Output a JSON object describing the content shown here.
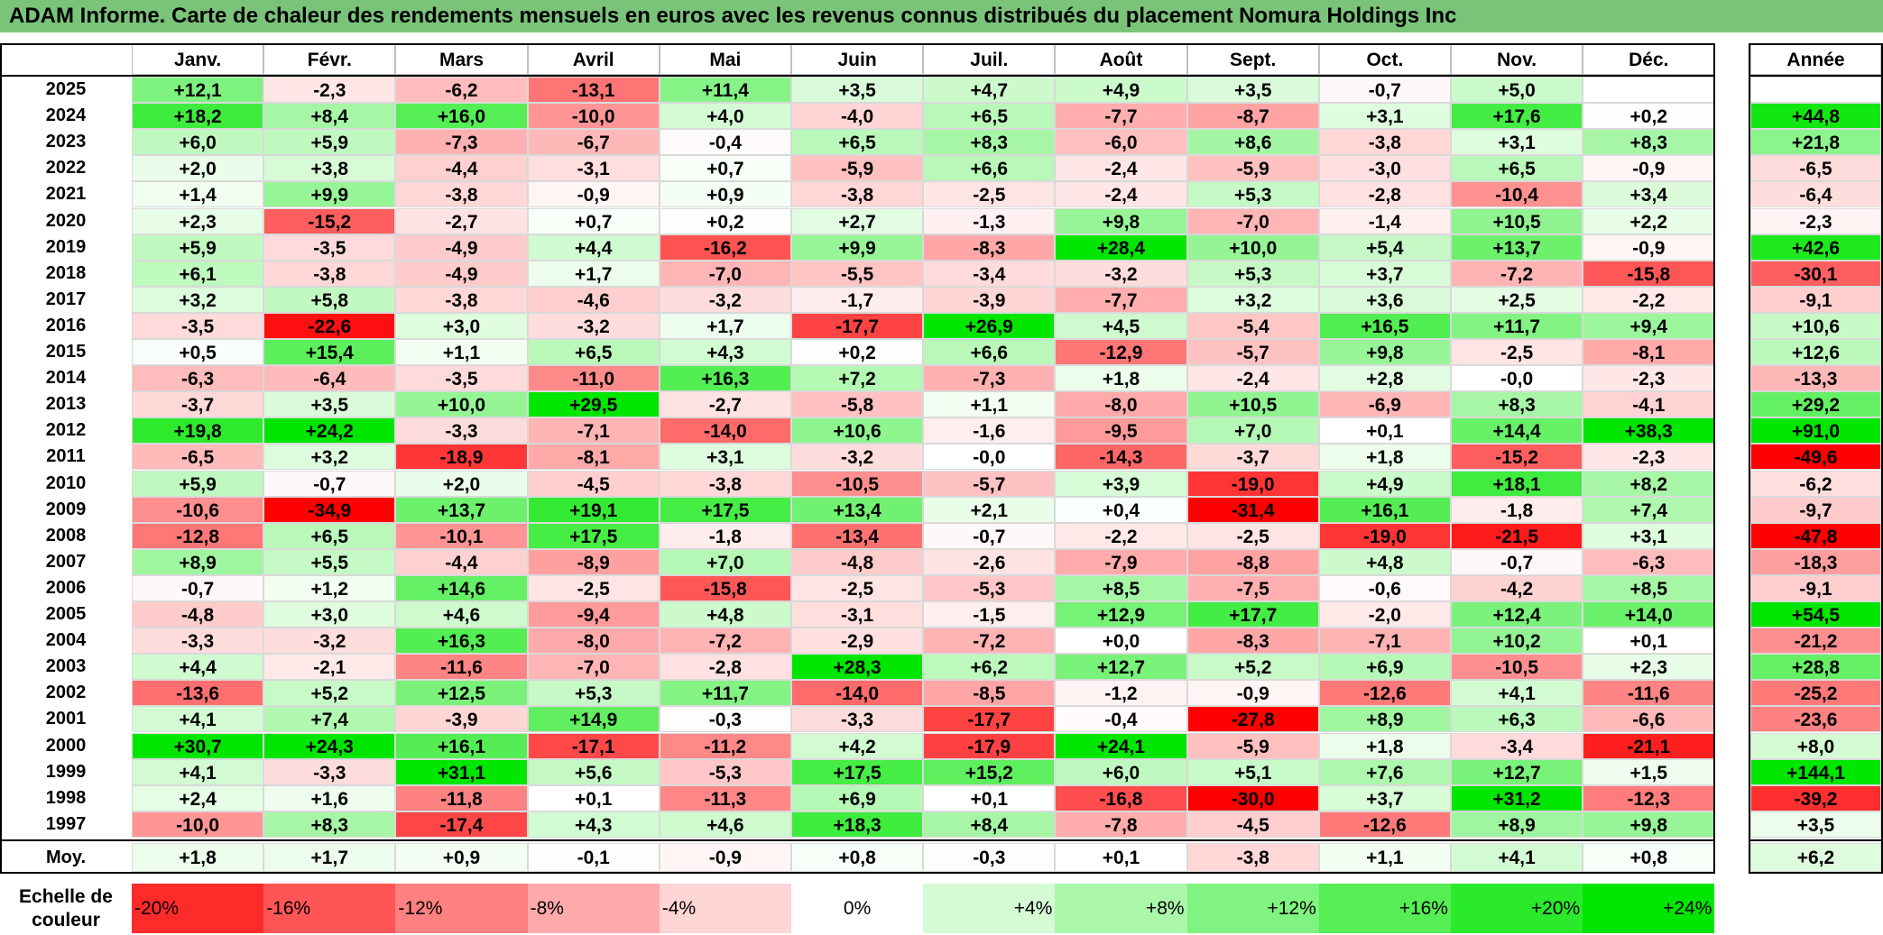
{
  "title": "ADAM Informe. Carte de chaleur des rendements mensuels en euros avec les revenus connus distribués du placement Nomura Holdings Inc",
  "colors": {
    "title_bg": "#7ac47a",
    "max_red": "#ff0000",
    "max_green": "#00e600",
    "neutral": "#ffffff"
  },
  "chart_data": {
    "type": "heatmap",
    "title": "ADAM Informe. Carte de chaleur des rendements mensuels en euros avec les revenus connus distribués du placement Nomura Holdings Inc",
    "months": [
      "Janv.",
      "Févr.",
      "Mars",
      "Avril",
      "Mai",
      "Juin",
      "Juil.",
      "Août",
      "Sept.",
      "Oct.",
      "Nov.",
      "Déc."
    ],
    "annual_label": "Année",
    "rows": [
      {
        "year": "2025",
        "values": [
          "+12,1",
          "-2,3",
          "-6,2",
          "-13,1",
          "+11,4",
          "+3,5",
          "+4,7",
          "+4,9",
          "+3,5",
          "-0,7",
          "+5,0",
          ""
        ],
        "annual": ""
      },
      {
        "year": "2024",
        "values": [
          "+18,2",
          "+8,4",
          "+16,0",
          "-10,0",
          "+4,0",
          "-4,0",
          "+6,5",
          "-7,7",
          "-8,7",
          "+3,1",
          "+17,6",
          "+0,2"
        ],
        "annual": "+44,8"
      },
      {
        "year": "2023",
        "values": [
          "+6,0",
          "+5,9",
          "-7,3",
          "-6,7",
          "-0,4",
          "+6,5",
          "+8,3",
          "-6,0",
          "+8,6",
          "-3,8",
          "+3,1",
          "+8,3"
        ],
        "annual": "+21,8"
      },
      {
        "year": "2022",
        "values": [
          "+2,0",
          "+3,8",
          "-4,4",
          "-3,1",
          "+0,7",
          "-5,9",
          "+6,6",
          "-2,4",
          "-5,9",
          "-3,0",
          "+6,5",
          "-0,9"
        ],
        "annual": "-6,5"
      },
      {
        "year": "2021",
        "values": [
          "+1,4",
          "+9,9",
          "-3,8",
          "-0,9",
          "+0,9",
          "-3,8",
          "-2,5",
          "-2,4",
          "+5,3",
          "-2,8",
          "-10,4",
          "+3,4"
        ],
        "annual": "-6,4"
      },
      {
        "year": "2020",
        "values": [
          "+2,3",
          "-15,2",
          "-2,7",
          "+0,7",
          "+0,2",
          "+2,7",
          "-1,3",
          "+9,8",
          "-7,0",
          "-1,4",
          "+10,5",
          "+2,2"
        ],
        "annual": "-2,3"
      },
      {
        "year": "2019",
        "values": [
          "+5,9",
          "-3,5",
          "-4,9",
          "+4,4",
          "-16,2",
          "+9,9",
          "-8,3",
          "+28,4",
          "+10,0",
          "+5,4",
          "+13,7",
          "-0,9"
        ],
        "annual": "+42,6"
      },
      {
        "year": "2018",
        "values": [
          "+6,1",
          "-3,8",
          "-4,9",
          "+1,7",
          "-7,0",
          "-5,5",
          "-3,4",
          "-3,2",
          "+5,3",
          "+3,7",
          "-7,2",
          "-15,8"
        ],
        "annual": "-30,1"
      },
      {
        "year": "2017",
        "values": [
          "+3,2",
          "+5,8",
          "-3,8",
          "-4,6",
          "-3,2",
          "-1,7",
          "-3,9",
          "-7,7",
          "+3,2",
          "+3,6",
          "+2,5",
          "-2,2"
        ],
        "annual": "-9,1"
      },
      {
        "year": "2016",
        "values": [
          "-3,5",
          "-22,6",
          "+3,0",
          "-3,2",
          "+1,7",
          "-17,7",
          "+26,9",
          "+4,5",
          "-5,4",
          "+16,5",
          "+11,7",
          "+9,4"
        ],
        "annual": "+10,6"
      },
      {
        "year": "2015",
        "values": [
          "+0,5",
          "+15,4",
          "+1,1",
          "+6,5",
          "+4,3",
          "+0,2",
          "+6,6",
          "-12,9",
          "-5,7",
          "+9,8",
          "-2,5",
          "-8,1"
        ],
        "annual": "+12,6"
      },
      {
        "year": "2014",
        "values": [
          "-6,3",
          "-6,4",
          "-3,5",
          "-11,0",
          "+16,3",
          "+7,2",
          "-7,3",
          "+1,8",
          "-2,4",
          "+2,8",
          "-0,0",
          "-2,3"
        ],
        "annual": "-13,3"
      },
      {
        "year": "2013",
        "values": [
          "-3,7",
          "+3,5",
          "+10,0",
          "+29,5",
          "-2,7",
          "-5,8",
          "+1,1",
          "-8,0",
          "+10,5",
          "-6,9",
          "+8,3",
          "-4,1"
        ],
        "annual": "+29,2"
      },
      {
        "year": "2012",
        "values": [
          "+19,8",
          "+24,2",
          "-3,3",
          "-7,1",
          "-14,0",
          "+10,6",
          "-1,6",
          "-9,5",
          "+7,0",
          "+0,1",
          "+14,4",
          "+38,3"
        ],
        "annual": "+91,0"
      },
      {
        "year": "2011",
        "values": [
          "-6,5",
          "+3,2",
          "-18,9",
          "-8,1",
          "+3,1",
          "-3,2",
          "-0,0",
          "-14,3",
          "-3,7",
          "+1,8",
          "-15,2",
          "-2,3"
        ],
        "annual": "-49,6"
      },
      {
        "year": "2010",
        "values": [
          "+5,9",
          "-0,7",
          "+2,0",
          "-4,5",
          "-3,8",
          "-10,5",
          "-5,7",
          "+3,9",
          "-19,0",
          "+4,9",
          "+18,1",
          "+8,2"
        ],
        "annual": "-6,2"
      },
      {
        "year": "2009",
        "values": [
          "-10,6",
          "-34,9",
          "+13,7",
          "+19,1",
          "+17,5",
          "+13,4",
          "+2,1",
          "+0,4",
          "-31,4",
          "+16,1",
          "-1,8",
          "+7,4"
        ],
        "annual": "-9,7"
      },
      {
        "year": "2008",
        "values": [
          "-12,8",
          "+6,5",
          "-10,1",
          "+17,5",
          "-1,8",
          "-13,4",
          "-0,7",
          "-2,2",
          "-2,5",
          "-19,0",
          "-21,5",
          "+3,1"
        ],
        "annual": "-47,8"
      },
      {
        "year": "2007",
        "values": [
          "+8,9",
          "+5,5",
          "-4,4",
          "-8,9",
          "+7,0",
          "-4,8",
          "-2,6",
          "-7,9",
          "-8,8",
          "+4,8",
          "-0,7",
          "-6,3"
        ],
        "annual": "-18,3"
      },
      {
        "year": "2006",
        "values": [
          "-0,7",
          "+1,2",
          "+14,6",
          "-2,5",
          "-15,8",
          "-2,5",
          "-5,3",
          "+8,5",
          "-7,5",
          "-0,6",
          "-4,2",
          "+8,5"
        ],
        "annual": "-9,1"
      },
      {
        "year": "2005",
        "values": [
          "-4,8",
          "+3,0",
          "+4,6",
          "-9,4",
          "+4,8",
          "-3,1",
          "-1,5",
          "+12,9",
          "+17,7",
          "-2,0",
          "+12,4",
          "+14,0"
        ],
        "annual": "+54,5"
      },
      {
        "year": "2004",
        "values": [
          "-3,3",
          "-3,2",
          "+16,3",
          "-8,0",
          "-7,2",
          "-2,9",
          "-7,2",
          "+0,0",
          "-8,3",
          "-7,1",
          "+10,2",
          "+0,1"
        ],
        "annual": "-21,2"
      },
      {
        "year": "2003",
        "values": [
          "+4,4",
          "-2,1",
          "-11,6",
          "-7,0",
          "-2,8",
          "+28,3",
          "+6,2",
          "+12,7",
          "+5,2",
          "+6,9",
          "-10,5",
          "+2,3"
        ],
        "annual": "+28,8"
      },
      {
        "year": "2002",
        "values": [
          "-13,6",
          "+5,2",
          "+12,5",
          "+5,3",
          "+11,7",
          "-14,0",
          "-8,5",
          "-1,2",
          "-0,9",
          "-12,6",
          "+4,1",
          "-11,6"
        ],
        "annual": "-25,2"
      },
      {
        "year": "2001",
        "values": [
          "+4,1",
          "+7,4",
          "-3,9",
          "+14,9",
          "-0,3",
          "-3,3",
          "-17,7",
          "-0,4",
          "-27,8",
          "+8,9",
          "+6,3",
          "-6,6"
        ],
        "annual": "-23,6"
      },
      {
        "year": "2000",
        "values": [
          "+30,7",
          "+24,3",
          "+16,1",
          "-17,1",
          "-11,2",
          "+4,2",
          "-17,9",
          "+24,1",
          "-5,9",
          "+1,8",
          "-3,4",
          "-21,1"
        ],
        "annual": "+8,0"
      },
      {
        "year": "1999",
        "values": [
          "+4,1",
          "-3,3",
          "+31,1",
          "+5,6",
          "-5,3",
          "+17,5",
          "+15,2",
          "+6,0",
          "+5,1",
          "+7,6",
          "+12,7",
          "+1,5"
        ],
        "annual": "+144,1"
      },
      {
        "year": "1998",
        "values": [
          "+2,4",
          "+1,6",
          "-11,8",
          "+0,1",
          "-11,3",
          "+6,9",
          "+0,1",
          "-16,8",
          "-30,0",
          "+3,7",
          "+31,2",
          "-12,3"
        ],
        "annual": "-39,2"
      },
      {
        "year": "1997",
        "values": [
          "-10,0",
          "+8,3",
          "-17,4",
          "+4,3",
          "+4,6",
          "+18,3",
          "+8,4",
          "-7,8",
          "-4,5",
          "-12,6",
          "+8,9",
          "+9,8"
        ],
        "annual": "+3,5"
      }
    ],
    "average": {
      "label": "Moy.",
      "values": [
        "+1,8",
        "+1,7",
        "+0,9",
        "-0,1",
        "-0,9",
        "+0,8",
        "-0,3",
        "+0,1",
        "-3,8",
        "+1,1",
        "+4,1",
        "+0,8"
      ],
      "annual": "+6,2"
    },
    "scale": {
      "label_line1": "Echelle de",
      "label_line2": "couleur",
      "items": [
        {
          "label": "-20%",
          "value": -20
        },
        {
          "label": "-16%",
          "value": -16
        },
        {
          "label": "-12%",
          "value": -12
        },
        {
          "label": "-8%",
          "value": -8
        },
        {
          "label": "-4%",
          "value": -4
        },
        {
          "label": "0%",
          "value": 0
        },
        {
          "label": "+4%",
          "value": 4
        },
        {
          "label": "+8%",
          "value": 8
        },
        {
          "label": "+12%",
          "value": 12
        },
        {
          "label": "+16%",
          "value": 16
        },
        {
          "label": "+20%",
          "value": 20
        },
        {
          "label": "+24%",
          "value": 24
        }
      ]
    }
  }
}
